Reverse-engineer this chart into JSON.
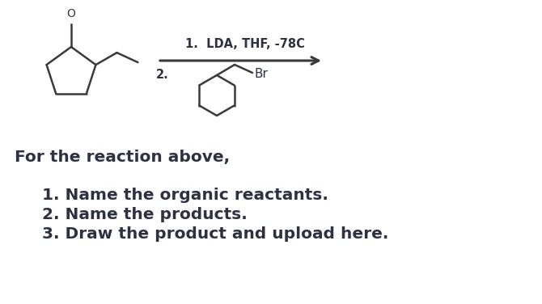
{
  "bg_color": "#ffffff",
  "text_color": "#2d3142",
  "line_color": "#3a3a3a",
  "arrow_color": "#3a3a3a",
  "main_text": "For the reaction above,",
  "items": [
    "1. Name the organic reactants.",
    "2. Name the products.",
    "3. Draw the product and upload here."
  ],
  "arrow_label_top": "1.  LDA, THF, -78C",
  "arrow_label_bottom": "2.",
  "br_label": "Br",
  "main_text_fontsize": 14.5,
  "item_fontsize": 14.5,
  "arrow_fontsize": 10.5,
  "label_fontsize": 11,
  "o_label": "O"
}
